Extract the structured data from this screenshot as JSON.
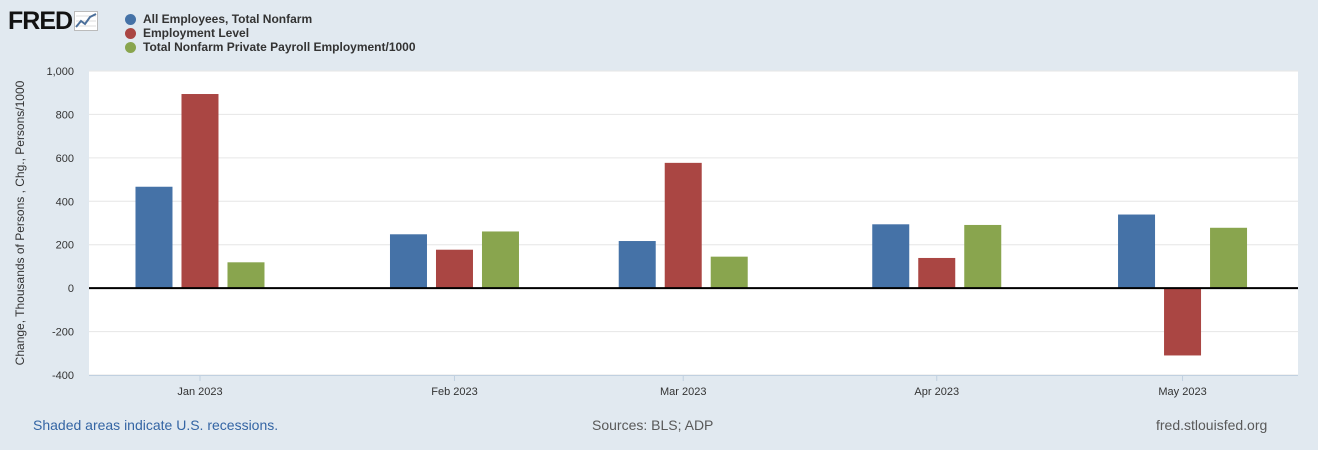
{
  "logo": {
    "text": "FRED"
  },
  "chart_data": {
    "type": "bar",
    "title": "",
    "xlabel": "",
    "ylabel": "Change, Thousands of Persons , Chg., Persons/1000",
    "ylim": [
      -400,
      1000
    ],
    "yticks": [
      1000,
      800,
      600,
      400,
      200,
      0,
      -200,
      -400
    ],
    "ytick_labels": [
      "1,000",
      "800",
      "600",
      "400",
      "200",
      "0",
      "-200",
      "-400"
    ],
    "grid": true,
    "legend_position": "top-left",
    "categories": [
      "Jan 2023",
      "Feb 2023",
      "Mar 2023",
      "Apr 2023",
      "May 2023"
    ],
    "series": [
      {
        "name": "All Employees, Total Nonfarm",
        "color": "#4572a7",
        "values": [
          467,
          248,
          217,
          294,
          339
        ]
      },
      {
        "name": "Employment Level",
        "color": "#aa4643",
        "values": [
          894,
          177,
          577,
          139,
          -310
        ]
      },
      {
        "name": "Total Nonfarm Private Payroll Employment/1000",
        "color": "#89a54e",
        "values": [
          119,
          261,
          145,
          291,
          278
        ]
      }
    ]
  },
  "footer": {
    "recessions_note": "Shaded areas indicate U.S. recessions.",
    "sources": "Sources: BLS; ADP",
    "site": "fred.stlouisfed.org"
  }
}
